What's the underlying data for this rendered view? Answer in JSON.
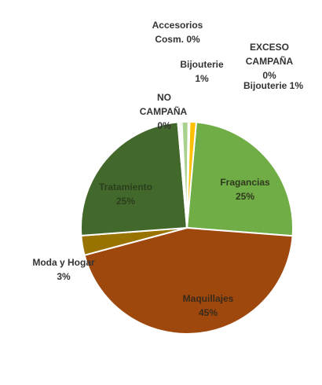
{
  "chart_data": {
    "type": "pie",
    "title": "",
    "slices": [
      {
        "name": "Fragancias",
        "value": 25,
        "pct_label": "25%",
        "color": "#70ad47"
      },
      {
        "name": "Maquillajes",
        "value": 45,
        "pct_label": "45%",
        "color": "#9e480e"
      },
      {
        "name": "Moda y Hogar",
        "value": 3,
        "pct_label": "3%",
        "color": "#997300"
      },
      {
        "name": "Tratamiento",
        "value": 25,
        "pct_label": "25%",
        "color": "#43682b"
      },
      {
        "name": "NO CAMPAÑA",
        "value": 0.3,
        "pct_label": "0%",
        "color": "#f0e8c8"
      },
      {
        "name": "Accesorios Cosm.",
        "value": 0.3,
        "pct_label": "0%",
        "color": "#c9d7b5"
      },
      {
        "name": "Bijouterie",
        "value": 1,
        "pct_label": "1%",
        "color": "#a9d18e"
      },
      {
        "name": "EXCESO CAMPAÑA",
        "value": 0.2,
        "pct_label": "0%",
        "color": "#e2efd9"
      },
      {
        "name": "Bijouterie",
        "value": 1,
        "pct_label": "1%",
        "color": "#ffc000"
      }
    ]
  },
  "labels": {
    "fragancias": {
      "name": "Fragancias",
      "pct": "25%"
    },
    "maquillajes": {
      "name": "Maquillajes",
      "pct": "45%"
    },
    "moda": {
      "name": "Moda y Hogar",
      "pct": "3%"
    },
    "tratamiento": {
      "name": "Tratamiento",
      "pct": "25%"
    },
    "no_campana": {
      "line1": "NO",
      "line2": "CAMPAÑA",
      "pct": "0%"
    },
    "accesorios": {
      "line1": "Accesorios",
      "line2": "Cosm. 0%"
    },
    "bijouterie_a": {
      "name": "Bijouterie",
      "pct": "1%"
    },
    "exceso": {
      "line1": "EXCESO",
      "line2": "CAMPAÑA",
      "pct": "0%"
    },
    "bijouterie_b": {
      "text": "Bijouterie 1%"
    }
  }
}
